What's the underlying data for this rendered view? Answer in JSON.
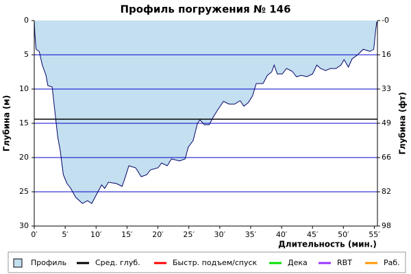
{
  "chart_data": {
    "type": "area",
    "title": "Профиль погружения № 146",
    "xlabel": "Длительность (мин.)",
    "ylabel": "Глубина (м)",
    "y2label": "Глубина (фт)",
    "x": [
      0,
      0.1,
      0.3,
      0.8,
      1.3,
      1.9,
      2.2,
      2.9,
      3.3,
      3.8,
      4.2,
      4.7,
      5.3,
      5.9,
      6.7,
      7.8,
      8.6,
      9.3,
      10,
      10.9,
      11.4,
      12,
      13.3,
      14.2,
      14.6,
      15.3,
      16.4,
      17.3,
      18.2,
      18.8,
      20,
      20.6,
      21.5,
      22.2,
      23.5,
      24.4,
      24.9,
      25.7,
      26.4,
      26.8,
      27.5,
      28.3,
      29,
      29.7,
      30.6,
      31.5,
      32.4,
      33.3,
      33.9,
      34.6,
      35.3,
      35.9,
      37,
      37.7,
      38.4,
      38.8,
      39.3,
      40.1,
      40.8,
      41.7,
      42.4,
      43.2,
      44.1,
      45,
      45.7,
      46.3,
      47.1,
      47.9,
      48.8,
      49.6,
      50.1,
      50.8,
      51.4,
      52.3,
      53.2,
      54.3,
      54.9,
      55.2,
      55.4
    ],
    "series": [
      {
        "name": "Профиль",
        "color": "#c3dff0",
        "line_color": "#000066",
        "values": [
          0,
          2,
          4.2,
          4.5,
          6.5,
          8,
          9.5,
          9.7,
          13,
          17,
          19,
          22.5,
          23.8,
          24.5,
          25.8,
          26.7,
          26.3,
          26.7,
          25.5,
          24,
          24.5,
          23.6,
          23.8,
          24.2,
          23.2,
          21.2,
          21.5,
          22.8,
          22.5,
          21.8,
          21.5,
          20.8,
          21.2,
          20.2,
          20.5,
          20.2,
          18.5,
          17.5,
          15,
          14.5,
          15.2,
          15.2,
          14,
          13,
          11.8,
          12.2,
          12.2,
          11.7,
          12.5,
          12,
          11,
          9.2,
          9.2,
          8,
          7.5,
          6.5,
          7.8,
          7.8,
          7,
          7.4,
          8.2,
          8,
          8.2,
          7.8,
          6.5,
          7,
          7.3,
          7,
          7,
          6.5,
          5.7,
          6.8,
          5.6,
          5,
          4.2,
          4.5,
          4.2,
          1.5,
          0.2
        ]
      }
    ],
    "average": {
      "name": "Сред. глуб.",
      "color": "#000000",
      "value": 14.4
    },
    "legend_extra": [
      {
        "name": "Быстр. подъем/спуск",
        "color": "#ff0000"
      },
      {
        "name": "Дека",
        "color": "#00e000"
      },
      {
        "name": "RBT",
        "color": "#9933ff"
      },
      {
        "name": "Раб.",
        "color": "#ff9900"
      }
    ],
    "xlim": [
      0,
      55.5
    ],
    "xticks": [
      {
        "value": 0,
        "label": "0′"
      },
      {
        "value": 5,
        "label": "5′"
      },
      {
        "value": 10,
        "label": "10′"
      },
      {
        "value": 15,
        "label": "15′"
      },
      {
        "value": 20,
        "label": "20′"
      },
      {
        "value": 25,
        "label": "25′"
      },
      {
        "value": 30,
        "label": "30′"
      },
      {
        "value": 35,
        "label": "35′"
      },
      {
        "value": 40,
        "label": "40′"
      },
      {
        "value": 45,
        "label": "45′"
      },
      {
        "value": 50,
        "label": "50′"
      },
      {
        "value": 55,
        "label": "55′"
      }
    ],
    "ylim": [
      0,
      30
    ],
    "y_inverted": true,
    "yticks": [
      0,
      5,
      10,
      15,
      20,
      25,
      30
    ],
    "y2lim": [
      0,
      98.4
    ],
    "y2ticks": [
      {
        "value": 0,
        "label": "-0"
      },
      {
        "value": 16.4,
        "label": "16"
      },
      {
        "value": 32.8,
        "label": "33"
      },
      {
        "value": 49.2,
        "label": "49"
      },
      {
        "value": 65.6,
        "label": "66"
      },
      {
        "value": 82,
        "label": "82"
      },
      {
        "value": 98.4,
        "label": "98"
      }
    ],
    "grid": true,
    "grid_color": "#0000cc"
  }
}
